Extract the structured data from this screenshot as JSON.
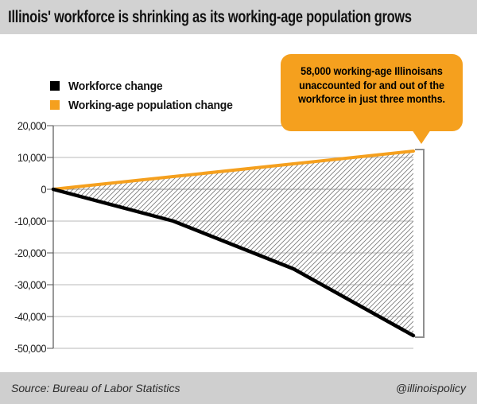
{
  "title_bar": {
    "title": "Illinois' workforce is shrinking as its working-age population grows",
    "bg_color": "#d2d2d2"
  },
  "legend": {
    "items": [
      {
        "label": "Workforce change",
        "color": "#000000"
      },
      {
        "label": "Working-age population change",
        "color": "#f5a01e"
      }
    ]
  },
  "callout": {
    "bg_color": "#f5a01e",
    "lines": [
      "58,000 working-age Illinoisans",
      "unaccounted for and out of the",
      "workforce in just three months."
    ]
  },
  "footer": {
    "source": "Source: Bureau of Labor Statistics",
    "handle": "@illinoispolicy",
    "bg_color": "#cfcfcf"
  },
  "chart_data": {
    "type": "area",
    "title": "Illinois' workforce is shrinking as its working-age population grows",
    "x": [
      0,
      1,
      2,
      3
    ],
    "x_tick_labels": [],
    "xlabel": "",
    "ylabel": "",
    "series": [
      {
        "name": "Workforce change",
        "color": "#000000",
        "values": [
          0,
          -10000,
          -25000,
          -46000
        ]
      },
      {
        "name": "Working-age population change",
        "color": "#f5a01e",
        "values": [
          0,
          4000,
          8000,
          12000
        ]
      }
    ],
    "fill_between": "hatched diagonal lines between the two series",
    "annotation": {
      "text": "58,000 working-age Illinoisans unaccounted for and out of the workforce in just three months.",
      "gap_value": 58000,
      "bracket_from": 12000,
      "bracket_to": -46000
    },
    "y_ticks": [
      20000,
      10000,
      0,
      -10000,
      -20000,
      -30000,
      -40000,
      -50000
    ],
    "y_tick_labels": [
      "20,000",
      "10,000",
      "0",
      "-10,000",
      "-20,000",
      "-30,000",
      "-40,000",
      "-50,000"
    ],
    "ylim": [
      -50000,
      20000
    ],
    "grid": true,
    "legend_position": "top-left",
    "accent_color": "#f5a01e"
  }
}
